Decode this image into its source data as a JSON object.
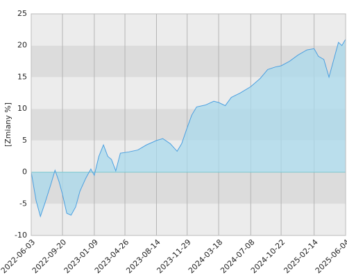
{
  "chart_data": {
    "type": "area",
    "y_label": "[Zmiany %]",
    "x": [
      "2022-06-03",
      "2022-06-20",
      "2022-07-05",
      "2022-07-20",
      "2022-08-10",
      "2022-08-25",
      "2022-09-08",
      "2022-09-20",
      "2022-10-05",
      "2022-10-20",
      "2022-11-05",
      "2022-11-20",
      "2022-12-10",
      "2022-12-28",
      "2023-01-09",
      "2023-01-25",
      "2023-02-10",
      "2023-02-25",
      "2023-03-10",
      "2023-03-25",
      "2023-04-10",
      "2023-05-10",
      "2023-06-10",
      "2023-07-10",
      "2023-08-14",
      "2023-09-05",
      "2023-10-01",
      "2023-10-25",
      "2023-11-10",
      "2023-11-29",
      "2023-12-15",
      "2024-01-01",
      "2024-02-01",
      "2024-03-01",
      "2024-03-18",
      "2024-04-10",
      "2024-05-01",
      "2024-06-01",
      "2024-07-08",
      "2024-08-10",
      "2024-09-05",
      "2024-10-01",
      "2024-10-22",
      "2024-11-20",
      "2024-12-20",
      "2025-01-20",
      "2025-02-14",
      "2025-03-01",
      "2025-03-20",
      "2025-04-07",
      "2025-04-25",
      "2025-05-10",
      "2025-05-22",
      "2025-06-04"
    ],
    "values": [
      0,
      -4.5,
      -7,
      -5,
      -2,
      0.3,
      -1.5,
      -3.5,
      -6.5,
      -6.8,
      -5.5,
      -3,
      -1,
      0.5,
      -0.5,
      2.5,
      4.3,
      2.5,
      2,
      0.2,
      3,
      3.2,
      3.5,
      4.3,
      5,
      5.3,
      4.5,
      3.3,
      4.5,
      7,
      9,
      10.3,
      10.6,
      11.2,
      11,
      10.5,
      11.8,
      12.5,
      13.5,
      14.8,
      16.2,
      16.6,
      16.8,
      17.5,
      18.5,
      19.3,
      19.5,
      18.3,
      17.8,
      15,
      18,
      20.5,
      20,
      21
    ],
    "line_color": "#4a9fe0",
    "fill_color": "#a9d9ec",
    "xlim": [
      "2022-06-03",
      "2025-06-04"
    ],
    "xticks": [
      "2022-06-03",
      "2022-09-20",
      "2023-01-09",
      "2023-04-26",
      "2023-08-14",
      "2023-11-29",
      "2024-03-18",
      "2024-07-08",
      "2024-10-22",
      "2025-02-14",
      "2025-06-04"
    ],
    "ylim": [
      -10,
      25
    ],
    "yticks": [
      -10,
      -5,
      0,
      5,
      10,
      15,
      20,
      25
    ],
    "grid": true
  }
}
